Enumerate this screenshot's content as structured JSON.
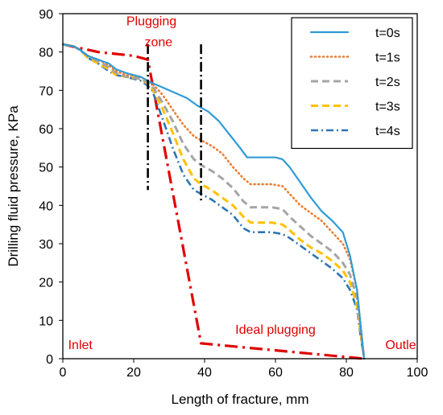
{
  "chart_data": {
    "type": "line",
    "title": "",
    "xlabel": "Length of fracture, mm",
    "ylabel": "Drilling fluid pressure, KPa",
    "xlim": [
      0,
      100
    ],
    "ylim": [
      0,
      90
    ],
    "xticks": [
      0,
      20,
      40,
      60,
      80,
      100
    ],
    "yticks": [
      0,
      10,
      20,
      30,
      40,
      50,
      60,
      70,
      80,
      90
    ],
    "grid": false,
    "legend_position": "top-right",
    "series": [
      {
        "name": "t=0s",
        "color": "#2e9cd6",
        "dash": "solid",
        "x": [
          0,
          3,
          5,
          7,
          10,
          13,
          15,
          18,
          22,
          25,
          30,
          35,
          38,
          41,
          44,
          47,
          50,
          52,
          54,
          57,
          60,
          62,
          64,
          67,
          70,
          73,
          76,
          79,
          81,
          83,
          84,
          85
        ],
        "y": [
          82,
          81.5,
          80.5,
          79,
          78,
          77,
          75.5,
          74.5,
          73.5,
          72,
          70,
          68,
          66,
          64.5,
          62,
          58.5,
          55,
          52.5,
          52.5,
          52.5,
          52.5,
          52,
          50,
          46,
          42,
          38.5,
          36,
          33,
          27,
          18,
          9,
          0
        ]
      },
      {
        "name": "t=1s",
        "color": "#ed7d31",
        "dash": "dotted",
        "x": [
          0,
          3,
          5,
          7,
          10,
          13,
          15,
          18,
          22,
          25,
          28,
          31,
          34,
          37,
          39,
          42,
          45,
          48,
          51,
          53,
          56,
          59,
          62,
          64,
          67,
          70,
          73,
          76,
          79,
          81,
          83,
          84,
          85
        ],
        "y": [
          82,
          81.5,
          80.5,
          79,
          78,
          76.5,
          75,
          74,
          73.5,
          72,
          69,
          65,
          61,
          58,
          57,
          55.5,
          53.5,
          50,
          47,
          45.5,
          45.5,
          45.5,
          45,
          43,
          40,
          38,
          36,
          33,
          30,
          26,
          18,
          9,
          0
        ]
      },
      {
        "name": "t=2s",
        "color": "#a5a5a5",
        "dash": "dashed",
        "x": [
          0,
          3,
          5,
          7,
          10,
          13,
          15,
          18,
          22,
          25,
          28,
          31,
          34,
          37,
          39,
          42,
          45,
          48,
          51,
          53,
          56,
          59,
          62,
          64,
          67,
          70,
          73,
          76,
          79,
          81,
          83,
          84,
          85
        ],
        "y": [
          82,
          81.5,
          80.5,
          79,
          77.5,
          76,
          74.5,
          73.5,
          73,
          71.5,
          67,
          62,
          56,
          52,
          50.5,
          49,
          47,
          44.5,
          41,
          39.5,
          39.5,
          39.5,
          39,
          37,
          34.5,
          32,
          30,
          28,
          25,
          22,
          16,
          8,
          0
        ]
      },
      {
        "name": "t=3s",
        "color": "#ffc000",
        "dash": "dashed",
        "x": [
          0,
          3,
          5,
          7,
          10,
          13,
          15,
          18,
          22,
          25,
          28,
          31,
          34,
          37,
          39,
          42,
          45,
          48,
          51,
          53,
          56,
          59,
          62,
          64,
          67,
          70,
          73,
          76,
          79,
          81,
          83,
          84,
          85
        ],
        "y": [
          82,
          81.5,
          80.5,
          78.5,
          77,
          75.5,
          74,
          73.5,
          73,
          71,
          65.5,
          59,
          52,
          47,
          45.5,
          44,
          42,
          40,
          37,
          35.5,
          35.5,
          35.5,
          35,
          33.5,
          31,
          29,
          27.5,
          25.5,
          23,
          20,
          14,
          7,
          0
        ]
      },
      {
        "name": "t=4s",
        "color": "#2e75b6",
        "dash": "dashdot",
        "x": [
          0,
          3,
          5,
          7,
          10,
          13,
          15,
          18,
          22,
          25,
          28,
          31,
          34,
          37,
          39,
          42,
          45,
          48,
          51,
          53,
          56,
          59,
          62,
          64,
          67,
          70,
          73,
          76,
          79,
          81,
          83,
          84,
          85
        ],
        "y": [
          82,
          81.5,
          80.5,
          78.5,
          77,
          75,
          74,
          73.5,
          72.5,
          70.5,
          63,
          55,
          48,
          44,
          43,
          41.5,
          39.5,
          37.5,
          34,
          33,
          33,
          33,
          32.5,
          31.5,
          29.5,
          27.5,
          25.5,
          23.5,
          21,
          18,
          13,
          6,
          0
        ]
      },
      {
        "name": "",
        "color": "#e00000",
        "dash": "longdashdot",
        "x": [
          0,
          5,
          10,
          20,
          24,
          39,
          85
        ],
        "y": [
          82,
          81,
          80,
          79,
          78,
          4,
          0
        ]
      }
    ],
    "annotations": [
      {
        "text": "Plugging",
        "x": 25,
        "y": 87
      },
      {
        "text": "zone",
        "x": 27,
        "y": 81.5
      },
      {
        "text": "Ideal plugging",
        "x": 60,
        "y": 6.5
      },
      {
        "text": "Inlet",
        "x": 1.5,
        "y": 2.5
      },
      {
        "text": "Outle",
        "x": 91,
        "y": 2.5
      }
    ],
    "vlines": [
      {
        "x": 24,
        "y_from": 44,
        "y_to": 82
      },
      {
        "x": 39,
        "y_from": 41,
        "y_to": 82
      }
    ]
  }
}
